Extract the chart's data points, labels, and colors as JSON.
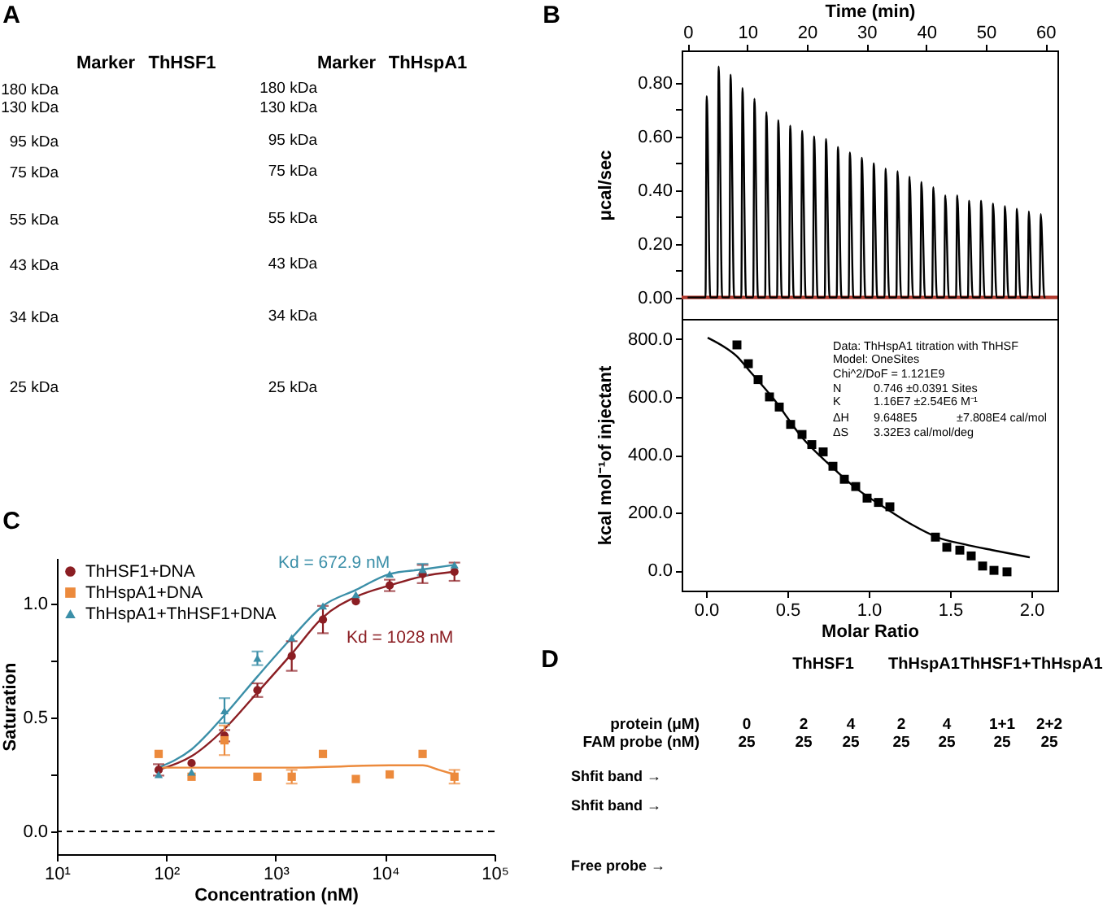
{
  "chart_data": [
    {
      "type": "other",
      "title": "A",
      "annotations": [
        "Marker",
        "ThHSF1",
        "180 kDa",
        "130 kDa",
        "95 kDa",
        "75 kDa",
        "55 kDa",
        "43 kDa",
        "34 kDa",
        "25 kDa",
        "Marker",
        "ThHspA1",
        "180 kDa",
        "130 kDa",
        "95 kDa",
        "75 kDa",
        "55 kDa",
        "43 kDa",
        "34 kDa",
        "25 kDa"
      ]
    },
    {
      "type": "line",
      "title": "B",
      "xlabel": "Time (min)",
      "ylabel": "μcal/sec",
      "xlim": [
        -1,
        62
      ],
      "xticks": [
        0,
        10,
        20,
        30,
        40,
        50,
        60
      ],
      "ylim": [
        -0.08,
        0.92
      ],
      "yticks": [
        {
          "value": 0,
          "label": "0.00"
        },
        {
          "value": 0.1,
          "label": null
        },
        {
          "value": 0.2,
          "label": "0.20"
        },
        {
          "value": 0.3,
          "label": null
        },
        {
          "value": 0.4,
          "label": "0.40"
        },
        {
          "value": 0.5,
          "label": null
        },
        {
          "value": 0.6,
          "label": "0.60"
        },
        {
          "value": 0.7,
          "label": null
        },
        {
          "value": 0.8,
          "label": "0.80"
        }
      ],
      "x": [
        0,
        3,
        3.2,
        3.8,
        5,
        5.2,
        5.8,
        7,
        7.2,
        7.8,
        9,
        9.2,
        9.8,
        11,
        11.2,
        11.8,
        13,
        13.2,
        13.8,
        15,
        15.2,
        15.8,
        17,
        17.2,
        17.8,
        19,
        19.2,
        19.8,
        21,
        21.2,
        21.8,
        23,
        23.2,
        23.8,
        25,
        25.2,
        25.8,
        27,
        27.2,
        27.8,
        29,
        29.2,
        29.8,
        31,
        31.2,
        31.8,
        33,
        33.2,
        33.8,
        35,
        35.2,
        35.8,
        37,
        37.2,
        37.8,
        39,
        39.2,
        39.8,
        41,
        41.2,
        41.8,
        43,
        43.2,
        43.8,
        45,
        45.2,
        45.8,
        47,
        47.2,
        47.8,
        49,
        49.2,
        49.8,
        51,
        51.2,
        51.8,
        53,
        53.2,
        53.8,
        55,
        55.2,
        55.8,
        57,
        57.2,
        57.8,
        59,
        59.2,
        59.8,
        60
      ],
      "series": [
        {
          "color": "#000000",
          "values": [
            0,
            0,
            0.75,
            0,
            0,
            0.86,
            0,
            0,
            0.83,
            0,
            0,
            0.78,
            0,
            0,
            0.74,
            0,
            0,
            0.69,
            0,
            0,
            0.66,
            0,
            0,
            0.64,
            0,
            0,
            0.62,
            0,
            0,
            0.6,
            0,
            0,
            0.59,
            0,
            0,
            0.56,
            0,
            0,
            0.54,
            0,
            0,
            0.52,
            0,
            0,
            0.5,
            0,
            0,
            0.48,
            0,
            0,
            0.47,
            0,
            0,
            0.45,
            0,
            0,
            0.43,
            0,
            0,
            0.41,
            0,
            0,
            0.38,
            0,
            0,
            0.38,
            0,
            0,
            0.36,
            0,
            0,
            0.36,
            0,
            0,
            0.35,
            0,
            0,
            0.34,
            0,
            0,
            0.33,
            0,
            0,
            0.32,
            0,
            0,
            0.31,
            0,
            0
          ]
        }
      ],
      "ref_lines": [
        {
          "axis": "y",
          "value": 0,
          "color": "#b03a2e"
        }
      ]
    },
    {
      "type": "scatter",
      "xlabel": "Molar Ratio",
      "ylabel": "kcal mol⁻¹of injectant",
      "xlim": [
        -0.15,
        2.16
      ],
      "xticks": [
        {
          "value": 0,
          "label": "0.0"
        },
        {
          "value": 0.5,
          "label": "0.5"
        },
        {
          "value": 1,
          "label": "1.0"
        },
        {
          "value": 1.5,
          "label": "1.5"
        },
        {
          "value": 2,
          "label": "2.0"
        }
      ],
      "ylim": [
        -70,
        870
      ],
      "yticks": [
        {
          "value": 0,
          "label": "0.0"
        },
        {
          "value": 200,
          "label": "200.0"
        },
        {
          "value": 400,
          "label": "400.0"
        },
        {
          "value": 600,
          "label": "600.0"
        },
        {
          "value": 800,
          "label": "800.0"
        }
      ],
      "series": [
        {
          "type": "scatter",
          "marker": "square",
          "color": "#000000",
          "x": [
            0.19,
            0.26,
            0.32,
            0.39,
            0.45,
            0.52,
            0.59,
            0.65,
            0.72,
            0.78,
            0.85,
            0.92,
            0.99,
            1.06,
            1.13,
            1.41,
            1.48,
            1.56,
            1.63,
            1.7,
            1.77,
            1.85
          ],
          "values": [
            780,
            715,
            660,
            600,
            565,
            505,
            470,
            435,
            410,
            360,
            315,
            290,
            250,
            235,
            220,
            115,
            80,
            70,
            50,
            15,
            0,
            -5
          ]
        },
        {
          "type": "line",
          "color": "#000000",
          "x": [
            0.01,
            0.12,
            0.19,
            0.26,
            0.42,
            0.59,
            0.76,
            0.92,
            1.09,
            1.26,
            1.42,
            1.59,
            1.76,
            1.99
          ],
          "values": [
            805,
            770,
            740,
            695,
            590,
            460,
            365,
            285,
            220,
            160,
            115,
            90,
            70,
            45
          ]
        }
      ],
      "annotations": [
        "Data: ThHspA1 titration with ThHSF",
        "Model: OneSites",
        "Chi^2/DoF = 1.121E9",
        "N",
        "0.746 ±0.0391 Sites",
        "K",
        "1.16E7 ±2.54E6 M⁻¹",
        "ΔH",
        "9.648E5",
        "±7.808E4 cal/mol",
        "ΔS",
        "3.32E3 cal/mol/deg"
      ]
    },
    {
      "type": "scatter",
      "title": "C",
      "xlabel": "Concentration (nM)",
      "ylabel": "Saturation",
      "log": "x",
      "xlim": [
        10,
        100000
      ],
      "xticks": [
        {
          "value": 10,
          "label": "10¹"
        },
        {
          "value": 100,
          "label": "10²"
        },
        {
          "value": 1000,
          "label": "10³"
        },
        {
          "value": 10000,
          "label": "10⁴"
        },
        {
          "value": 100000,
          "label": "10⁵"
        }
      ],
      "ylim": [
        -0.1,
        1.2
      ],
      "yticks": [
        {
          "value": 0,
          "label": "0.0"
        },
        {
          "value": 0.25,
          "label": null
        },
        {
          "value": 0.5,
          "label": "0.5"
        },
        {
          "value": 0.75,
          "label": null
        },
        {
          "value": 1,
          "label": "1.0"
        }
      ],
      "legend": "top left",
      "x": [
        85,
        170,
        340,
        680,
        1400,
        2700,
        5400,
        11000,
        22000,
        43000
      ],
      "series": [
        {
          "name": "ThHSF1+DNA",
          "type": "scatter",
          "marker": "circle",
          "color": "#8b1e23",
          "values": [
            0.27,
            0.3,
            0.42,
            0.62,
            0.77,
            0.93,
            1.01,
            1.08,
            1.13,
            1.14
          ],
          "errors": [
            0.025,
            null,
            0.025,
            0.03,
            0.065,
            0.06,
            null,
            0.025,
            0.04,
            0.04
          ]
        },
        {
          "name": "ThHspA1+DNA",
          "type": "scatter",
          "marker": "square",
          "color": "#ec8a3c",
          "values": [
            0.34,
            0.24,
            0.4,
            0.24,
            0.24,
            0.34,
            0.23,
            0.25,
            0.34,
            0.24
          ],
          "errors": [
            null,
            null,
            0.065,
            null,
            0.03,
            null,
            null,
            null,
            null,
            0.03
          ]
        },
        {
          "name": "ThHspA1+ThHSF1+DNA",
          "type": "scatter",
          "marker": "triangle",
          "color": "#3b8fa8",
          "values": [
            0.25,
            0.26,
            0.53,
            0.76,
            0.85,
            0.99,
            1.04,
            1.13,
            1.15,
            1.17
          ],
          "errors": [
            null,
            null,
            0.055,
            0.03,
            null,
            null,
            null,
            null,
            0.025,
            null
          ]
        },
        {
          "type": "line",
          "color": "#8b1e23",
          "x": [
            85,
            170,
            340,
            680,
            1400,
            2700,
            5400,
            11000,
            22000,
            43000
          ],
          "values": [
            0.27,
            0.33,
            0.45,
            0.61,
            0.78,
            0.94,
            1.03,
            1.08,
            1.12,
            1.14
          ]
        },
        {
          "type": "line",
          "color": "#ec8a3c",
          "x": [
            85,
            1400,
            11000,
            22000,
            31000,
            43000
          ],
          "values": [
            0.28,
            0.28,
            0.29,
            0.29,
            0.27,
            0.25
          ]
        },
        {
          "type": "line",
          "color": "#3b8fa8",
          "x": [
            85,
            170,
            340,
            680,
            1400,
            2700,
            5400,
            11000,
            22000,
            43000
          ],
          "values": [
            0.28,
            0.36,
            0.51,
            0.68,
            0.85,
            0.99,
            1.06,
            1.13,
            1.15,
            1.17
          ]
        }
      ],
      "ref_lines": [
        {
          "axis": "y",
          "value": 0,
          "line_style": "dashed",
          "color": "#000000"
        }
      ],
      "annotations": [
        "Kd = 672.9 nM",
        "Kd = 1028 nM"
      ]
    },
    {
      "type": "other",
      "title": "D",
      "annotations": [
        "ThHSF1",
        "ThHspA1",
        "ThHSF1+ThHspA1",
        "protein (μM)",
        "0",
        "2",
        "4",
        "2",
        "4",
        "1+1",
        "2+2",
        "FAM probe (nM)",
        "25",
        "25",
        "25",
        "25",
        "25",
        "25",
        "25",
        "Shfit band →",
        "Shfit band →",
        "Free probe →"
      ]
    }
  ]
}
